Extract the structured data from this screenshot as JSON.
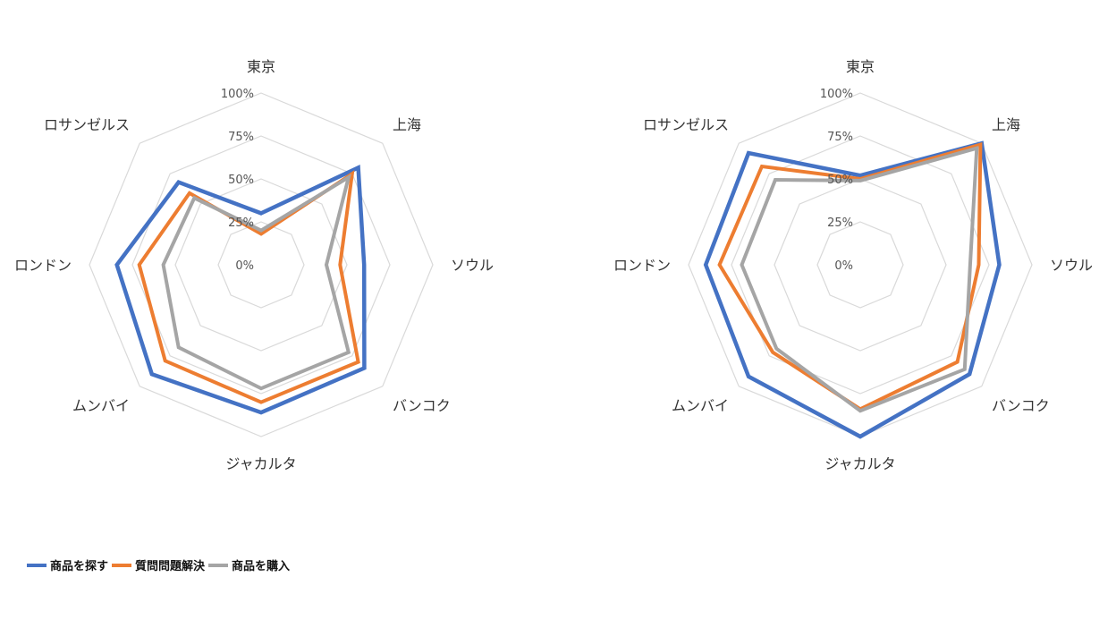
{
  "colors": {
    "grid": "#d9d9d9",
    "series": [
      "#4472c4",
      "#ed7d31",
      "#a5a5a5"
    ]
  },
  "legend": [
    "商品を探す",
    "質問問題解決",
    "商品を購入"
  ],
  "chart_data": [
    {
      "type": "radar",
      "categories": [
        "東京",
        "上海",
        "ソウル",
        "バンコク",
        "ジャカルタ",
        "ムンバイ",
        "ロンドン",
        "ロサンゼルス"
      ],
      "ticks": [
        "0%",
        "25%",
        "50%",
        "75%",
        "100%"
      ],
      "rmax": 100,
      "series": [
        {
          "name": "商品を探す",
          "values": [
            30,
            80,
            60,
            85,
            86,
            90,
            84,
            68
          ]
        },
        {
          "name": "質問問題解決",
          "values": [
            18,
            75,
            46,
            80,
            80,
            79,
            71,
            59
          ]
        },
        {
          "name": "商品を購入",
          "values": [
            20,
            72,
            38,
            72,
            72,
            68,
            57,
            55
          ]
        }
      ]
    },
    {
      "type": "radar",
      "categories": [
        "東京",
        "上海",
        "ソウル",
        "バンコク",
        "ジャカルタ",
        "ムンバイ",
        "ロンドン",
        "ロサンゼルス"
      ],
      "ticks": [
        "0%",
        "25%",
        "50%",
        "75%",
        "100%"
      ],
      "rmax": 100,
      "series": [
        {
          "name": "商品を探す",
          "values": [
            52,
            100,
            81,
            90,
            100,
            92,
            90,
            92
          ]
        },
        {
          "name": "質問問題解決",
          "values": [
            50,
            99,
            69,
            80,
            84,
            72,
            82,
            81
          ]
        },
        {
          "name": "商品を購入",
          "values": [
            49,
            96,
            64,
            86,
            85,
            69,
            69,
            70
          ]
        }
      ]
    }
  ]
}
